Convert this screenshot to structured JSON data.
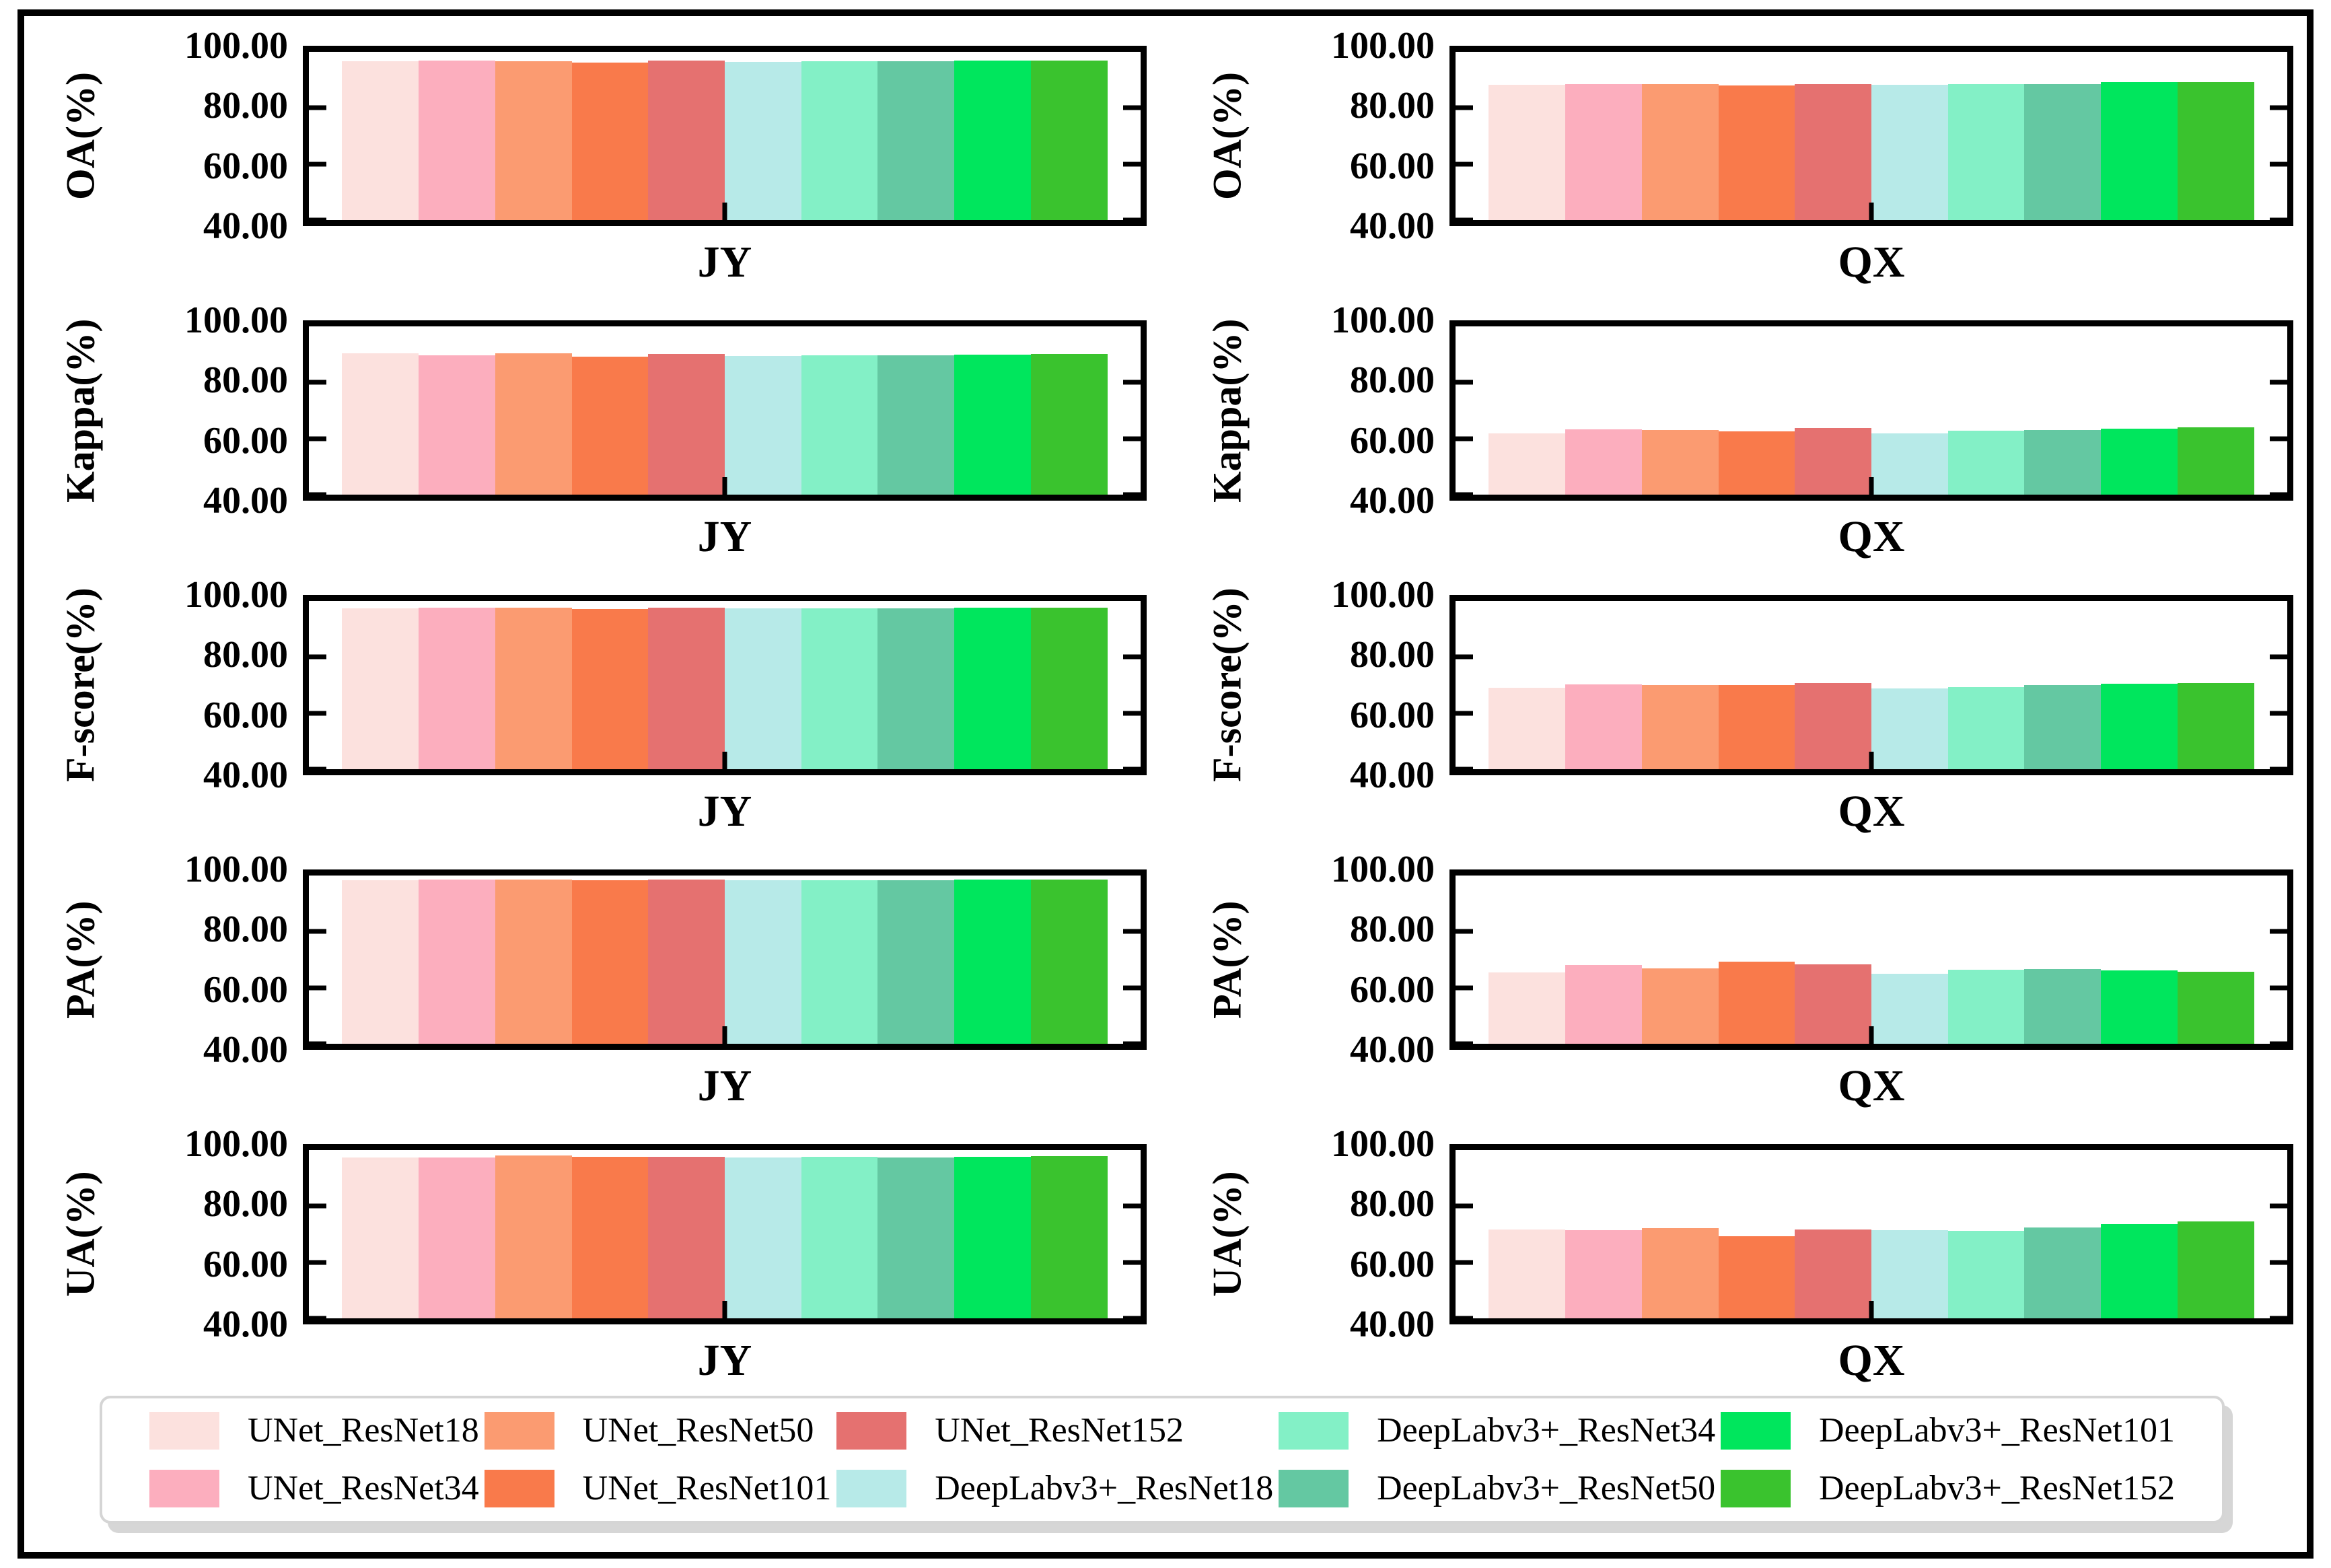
{
  "figure": {
    "datasets": [
      "JY",
      "QX"
    ],
    "metrics": [
      "OA(%)",
      "Kappa(%)",
      "F-score(%)",
      "PA(%)",
      "UA(%)"
    ],
    "border_color": "#000000",
    "legend_border_color": "#D5D5D5"
  },
  "chart_data": {
    "type": "bar",
    "layout": "5 rows (metrics) x 2 columns (datasets), no gridlines, ticks inward",
    "ylim": [
      40,
      100
    ],
    "yticks": [
      "100.00",
      "80.00",
      "60.00",
      "40.00"
    ],
    "ytick_values": [
      100,
      80,
      60,
      40
    ],
    "categories": [
      "UNet_ResNet18",
      "UNet_ResNet34",
      "UNet_ResNet50",
      "UNet_ResNet101",
      "UNet_ResNet152",
      "DeepLabv3+_ResNet18",
      "DeepLabv3+_ResNet34",
      "DeepLabv3+_ResNet50",
      "DeepLabv3+_ResNet101",
      "DeepLabv3+_ResNet152"
    ],
    "colors": [
      "#FCE1DE",
      "#FCAEBE",
      "#FB9B71",
      "#F97A4B",
      "#E57170",
      "#B7EAE8",
      "#83F0C6",
      "#64C8A2",
      "#00E65D",
      "#3AC32E"
    ],
    "subplots": [
      {
        "ylabel": "OA(%)",
        "xlabel": "JY",
        "values": [
          96.6,
          96.8,
          96.7,
          96.2,
          96.8,
          96.5,
          96.6,
          96.6,
          96.8,
          96.9
        ]
      },
      {
        "ylabel": "OA(%)",
        "xlabel": "QX",
        "values": [
          88.3,
          88.6,
          88.6,
          88.0,
          88.6,
          88.3,
          88.4,
          88.4,
          89.2,
          89.3
        ]
      },
      {
        "ylabel": "Kappa(%)",
        "xlabel": "JY",
        "values": [
          90.3,
          89.8,
          90.5,
          89.2,
          90.2,
          89.5,
          89.7,
          89.8,
          90.0,
          90.1
        ]
      },
      {
        "ylabel": "Kappa(%)",
        "xlabel": "QX",
        "values": [
          61.8,
          63.3,
          63.0,
          62.6,
          63.7,
          61.9,
          62.7,
          63.0,
          63.6,
          64.0
        ]
      },
      {
        "ylabel": "F-score(%)",
        "xlabel": "JY",
        "values": [
          97.4,
          97.5,
          97.5,
          97.2,
          97.5,
          97.3,
          97.4,
          97.4,
          97.5,
          97.6
        ]
      },
      {
        "ylabel": "F-score(%)",
        "xlabel": "QX",
        "values": [
          69.0,
          70.3,
          70.0,
          70.0,
          70.8,
          68.7,
          69.4,
          70.0,
          70.5,
          70.8
        ]
      },
      {
        "ylabel": "PA(%)",
        "xlabel": "JY",
        "values": [
          98.4,
          98.5,
          98.5,
          98.4,
          98.5,
          98.3,
          98.4,
          98.4,
          98.5,
          98.5
        ]
      },
      {
        "ylabel": "PA(%)",
        "xlabel": "QX",
        "values": [
          65.5,
          68.0,
          67.0,
          69.4,
          68.4,
          64.9,
          66.4,
          66.7,
          66.1,
          65.8
        ]
      },
      {
        "ylabel": "UA(%)",
        "xlabel": "JY",
        "values": [
          97.4,
          97.4,
          98.0,
          97.6,
          97.7,
          97.3,
          97.5,
          97.4,
          97.5,
          97.8
        ]
      },
      {
        "ylabel": "UA(%)",
        "xlabel": "QX",
        "values": [
          71.8,
          71.5,
          72.2,
          69.4,
          71.8,
          71.4,
          71.2,
          72.3,
          73.5,
          74.5
        ]
      }
    ]
  },
  "legend": {
    "columns": [
      [
        0,
        1
      ],
      [
        2,
        3
      ],
      [
        4,
        5
      ],
      [
        6,
        7
      ],
      [
        8,
        9
      ]
    ]
  }
}
